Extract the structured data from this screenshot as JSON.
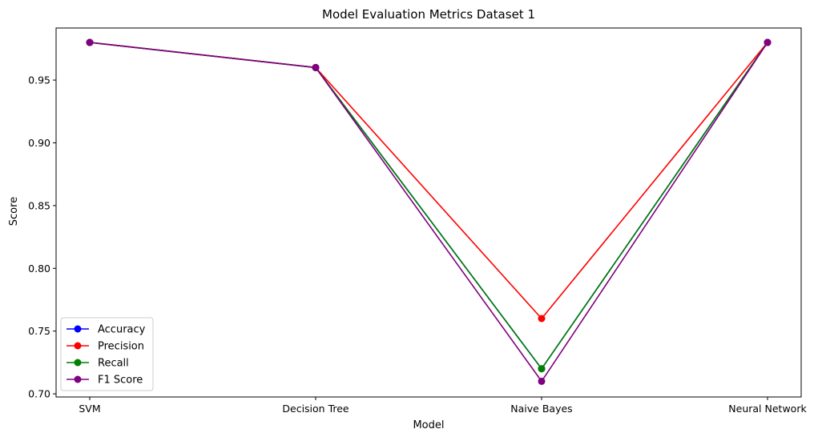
{
  "chart_data": {
    "type": "line",
    "title": "Model Evaluation Metrics Dataset 1",
    "xlabel": "Model",
    "ylabel": "Score",
    "categories": [
      "SVM",
      "Decision Tree",
      "Naive Bayes",
      "Neural Network"
    ],
    "ylim": [
      0.6975,
      0.9915
    ],
    "yticks": [
      0.7,
      0.75,
      0.8,
      0.85,
      0.9,
      0.95
    ],
    "ytick_labels": [
      "0.70",
      "0.75",
      "0.80",
      "0.85",
      "0.90",
      "0.95"
    ],
    "grid": false,
    "legend_position": "lower-left",
    "series": [
      {
        "name": "Accuracy",
        "color": "#0000ff",
        "values": [
          0.98,
          0.96,
          0.72,
          0.98
        ]
      },
      {
        "name": "Precision",
        "color": "#ff0000",
        "values": [
          0.98,
          0.96,
          0.76,
          0.98
        ]
      },
      {
        "name": "Recall",
        "color": "#008000",
        "values": [
          0.98,
          0.96,
          0.72,
          0.98
        ]
      },
      {
        "name": "F1 Score",
        "color": "#800080",
        "values": [
          0.98,
          0.96,
          0.71,
          0.98
        ]
      }
    ]
  }
}
